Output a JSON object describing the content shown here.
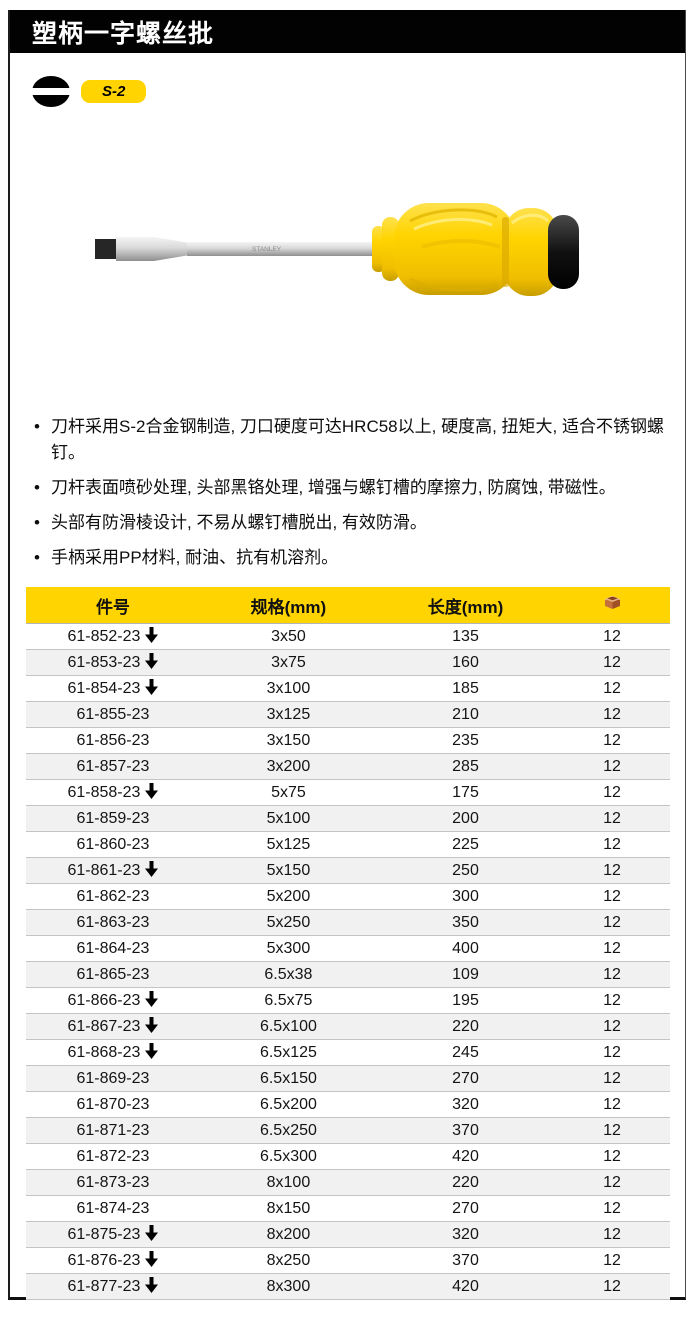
{
  "page": {
    "title": "塑柄一字螺丝批"
  },
  "badges": {
    "tip_type": "S-2"
  },
  "product": {
    "brand_on_shaft": "STANLEY"
  },
  "features": [
    "刀杆采用S-2合金钢制造, 刀口硬度可达HRC58以上, 硬度高, 扭矩大, 适合不锈钢螺钉。",
    "刀杆表面喷砂处理, 头部黑铬处理, 增强与螺钉槽的摩擦力, 防腐蚀, 带磁性。",
    "头部有防滑棱设计, 不易从螺钉槽脱出, 有效防滑。",
    "手柄采用PP材料, 耐油、抗有机溶剂。"
  ],
  "colors": {
    "brand_yellow": "#ffd400",
    "title_bar_black": "#020202",
    "row_alt_gray": "#f1f1f1"
  },
  "table": {
    "headers": {
      "part": "件号",
      "spec": "规格(mm)",
      "length": "长度(mm)",
      "qty_icon": "carton-icon"
    },
    "rows": [
      {
        "part": "61-852-23",
        "arrow": true,
        "spec": "3x50",
        "length": "135",
        "qty": "12"
      },
      {
        "part": "61-853-23",
        "arrow": true,
        "spec": "3x75",
        "length": "160",
        "qty": "12"
      },
      {
        "part": "61-854-23",
        "arrow": true,
        "spec": "3x100",
        "length": "185",
        "qty": "12"
      },
      {
        "part": "61-855-23",
        "arrow": false,
        "spec": "3x125",
        "length": "210",
        "qty": "12"
      },
      {
        "part": "61-856-23",
        "arrow": false,
        "spec": "3x150",
        "length": "235",
        "qty": "12"
      },
      {
        "part": "61-857-23",
        "arrow": false,
        "spec": "3x200",
        "length": "285",
        "qty": "12"
      },
      {
        "part": "61-858-23",
        "arrow": true,
        "spec": "5x75",
        "length": "175",
        "qty": "12"
      },
      {
        "part": "61-859-23",
        "arrow": false,
        "spec": "5x100",
        "length": "200",
        "qty": "12"
      },
      {
        "part": "61-860-23",
        "arrow": false,
        "spec": "5x125",
        "length": "225",
        "qty": "12"
      },
      {
        "part": "61-861-23",
        "arrow": true,
        "spec": "5x150",
        "length": "250",
        "qty": "12"
      },
      {
        "part": "61-862-23",
        "arrow": false,
        "spec": "5x200",
        "length": "300",
        "qty": "12"
      },
      {
        "part": "61-863-23",
        "arrow": false,
        "spec": "5x250",
        "length": "350",
        "qty": "12"
      },
      {
        "part": "61-864-23",
        "arrow": false,
        "spec": "5x300",
        "length": "400",
        "qty": "12"
      },
      {
        "part": "61-865-23",
        "arrow": false,
        "spec": "6.5x38",
        "length": "109",
        "qty": "12"
      },
      {
        "part": "61-866-23",
        "arrow": true,
        "spec": "6.5x75",
        "length": "195",
        "qty": "12"
      },
      {
        "part": "61-867-23",
        "arrow": true,
        "spec": "6.5x100",
        "length": "220",
        "qty": "12"
      },
      {
        "part": "61-868-23",
        "arrow": true,
        "spec": "6.5x125",
        "length": "245",
        "qty": "12"
      },
      {
        "part": "61-869-23",
        "arrow": false,
        "spec": "6.5x150",
        "length": "270",
        "qty": "12"
      },
      {
        "part": "61-870-23",
        "arrow": false,
        "spec": "6.5x200",
        "length": "320",
        "qty": "12"
      },
      {
        "part": "61-871-23",
        "arrow": false,
        "spec": "6.5x250",
        "length": "370",
        "qty": "12"
      },
      {
        "part": "61-872-23",
        "arrow": false,
        "spec": "6.5x300",
        "length": "420",
        "qty": "12"
      },
      {
        "part": "61-873-23",
        "arrow": false,
        "spec": "8x100",
        "length": "220",
        "qty": "12"
      },
      {
        "part": "61-874-23",
        "arrow": false,
        "spec": "8x150",
        "length": "270",
        "qty": "12"
      },
      {
        "part": "61-875-23",
        "arrow": true,
        "spec": "8x200",
        "length": "320",
        "qty": "12"
      },
      {
        "part": "61-876-23",
        "arrow": true,
        "spec": "8x250",
        "length": "370",
        "qty": "12"
      },
      {
        "part": "61-877-23",
        "arrow": true,
        "spec": "8x300",
        "length": "420",
        "qty": "12"
      }
    ]
  }
}
